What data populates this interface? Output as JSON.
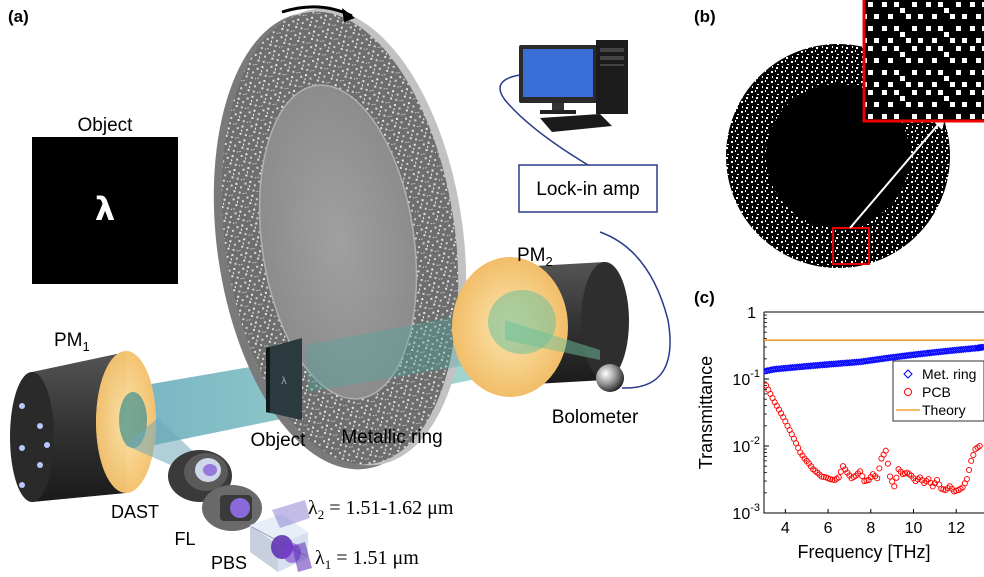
{
  "panels": {
    "a": "(a)",
    "b": "(b)",
    "c": "(c)"
  },
  "setup": {
    "object_title": "Object",
    "object_symbol": "λ",
    "lockin": "Lock-in amp",
    "pm2": {
      "base": "PM",
      "sub": "2"
    },
    "pm1": {
      "base": "PM",
      "sub": "1"
    },
    "object_label": "Object",
    "ring_label": "Metallic ring",
    "bolometer_label": "Bolometer",
    "dast_label": "DAST",
    "fl_label": "FL",
    "pbs_label": "PBS",
    "lambda2": {
      "symbol": "λ",
      "sub": "2",
      "value": " = 1.51-1.62 μm"
    },
    "lambda1": {
      "symbol": "λ",
      "sub": "1",
      "value": " = 1.51 μm"
    }
  },
  "chart_data": {
    "type": "scatter",
    "xlabel": "Frequency [THz]",
    "ylabel": "Transmittance",
    "xlim": [
      3,
      13.3
    ],
    "ylim": [
      0.001,
      1
    ],
    "yscale": "log",
    "xticks": [
      4,
      6,
      8,
      10,
      12
    ],
    "yticks": [
      {
        "value": 1,
        "base": "1",
        "exp": ""
      },
      {
        "value": 0.1,
        "base": "10",
        "exp": "-1"
      },
      {
        "value": 0.01,
        "base": "10",
        "exp": "-2"
      },
      {
        "value": 0.001,
        "base": "10",
        "exp": "-3"
      }
    ],
    "legend_position": "top-right",
    "series": [
      {
        "name": "Met. ring",
        "marker": "diamond",
        "color": "#0000ff",
        "x": [
          3.0,
          3.5,
          4.0,
          4.5,
          5.0,
          5.5,
          6.0,
          6.5,
          7.0,
          7.5,
          8.0,
          8.5,
          9.0,
          9.5,
          10.0,
          10.5,
          11.0,
          11.5,
          12.0,
          12.5,
          13.0,
          13.3
        ],
        "y": [
          0.13,
          0.14,
          0.145,
          0.15,
          0.155,
          0.16,
          0.165,
          0.17,
          0.175,
          0.18,
          0.19,
          0.2,
          0.21,
          0.22,
          0.23,
          0.24,
          0.25,
          0.26,
          0.27,
          0.28,
          0.29,
          0.3
        ]
      },
      {
        "name": "PCB",
        "marker": "circle",
        "color": "#ff0000",
        "x": [
          3.1,
          3.3,
          3.5,
          3.7,
          3.9,
          4.1,
          4.3,
          4.5,
          4.7,
          4.9,
          5.1,
          5.3,
          5.5,
          5.7,
          5.9,
          6.1,
          6.3,
          6.5,
          6.7,
          6.9,
          7.1,
          7.3,
          7.5,
          7.7,
          7.9,
          8.1,
          8.3,
          8.5,
          8.7,
          8.9,
          9.1,
          9.3,
          9.5,
          9.7,
          9.9,
          10.1,
          10.3,
          10.5,
          10.7,
          10.9,
          11.1,
          11.3,
          11.5,
          11.7,
          11.9,
          12.1,
          12.3,
          12.5,
          12.7,
          12.9,
          13.1
        ],
        "y": [
          0.08,
          0.06,
          0.045,
          0.035,
          0.027,
          0.02,
          0.015,
          0.011,
          0.008,
          0.0065,
          0.0055,
          0.0045,
          0.004,
          0.0035,
          0.0034,
          0.0032,
          0.0031,
          0.0034,
          0.005,
          0.004,
          0.0033,
          0.0036,
          0.0042,
          0.003,
          0.0031,
          0.0038,
          0.0033,
          0.0065,
          0.0085,
          0.0035,
          0.0025,
          0.0045,
          0.0038,
          0.004,
          0.0036,
          0.003,
          0.0034,
          0.0028,
          0.0032,
          0.0025,
          0.0031,
          0.0023,
          0.0022,
          0.0025,
          0.0021,
          0.0022,
          0.0024,
          0.0032,
          0.006,
          0.009,
          0.01
        ]
      },
      {
        "name": "Theory",
        "marker": "line",
        "color": "#f0a030",
        "x": [
          3.0,
          13.3
        ],
        "y": [
          0.38,
          0.38
        ]
      }
    ]
  }
}
